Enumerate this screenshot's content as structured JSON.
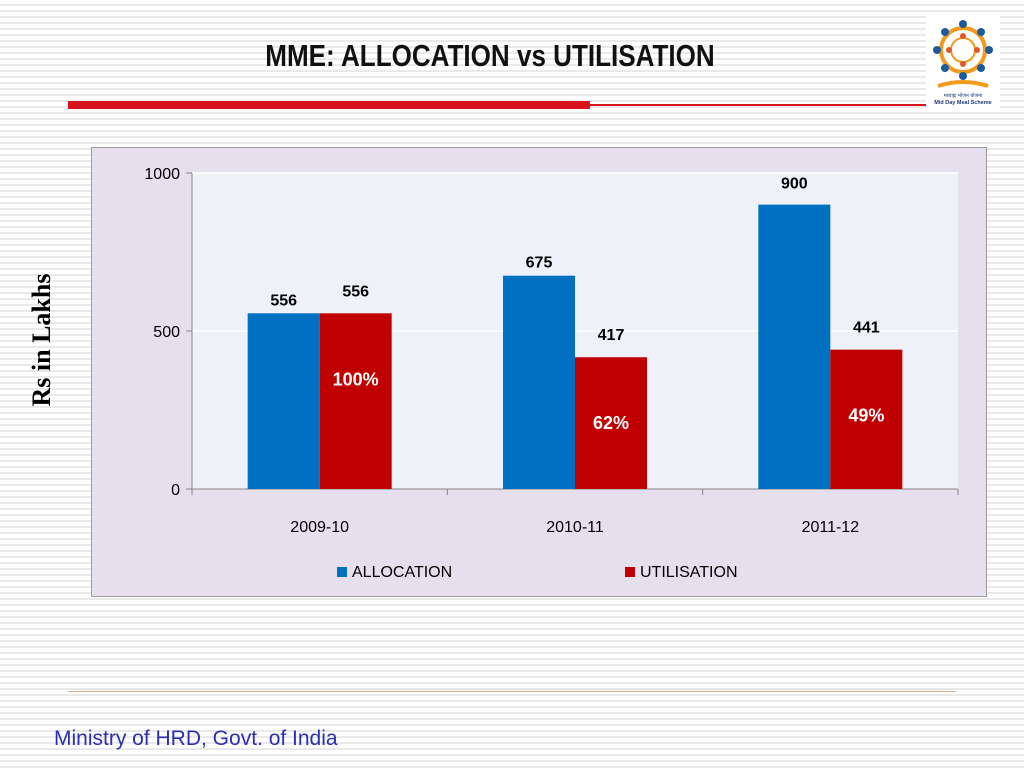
{
  "slide": {
    "title": "MME: ALLOCATION vs UTILISATION",
    "footer": "Ministry of HRD, Govt. of India",
    "logo_caption": "मध्याह्न भोजन योजना",
    "logo_name": "Mid Day Meal Scheme"
  },
  "colors": {
    "title_rule": "#d7131b",
    "chart_background": "#e6dfed",
    "plot_background": "#eef2f8",
    "allocation": "#0070c0",
    "utilisation": "#c00000",
    "footer_text": "#2c2fb1"
  },
  "chart_data": {
    "type": "bar",
    "title": "",
    "ylabel": "Rs in Lakhs",
    "xlabel": "",
    "ylim": [
      0,
      1000
    ],
    "yticks": [
      0,
      500,
      1000
    ],
    "grid": true,
    "legend_position": "bottom",
    "categories": [
      "2009-10",
      "2010-11",
      "2011-12"
    ],
    "series": [
      {
        "name": "ALLOCATION",
        "color": "#0070c0",
        "values": [
          556,
          675,
          900
        ],
        "labels": [
          "556",
          "675",
          "900"
        ]
      },
      {
        "name": "UTILISATION",
        "color": "#c00000",
        "values": [
          556,
          417,
          441
        ],
        "labels": [
          "556",
          "417",
          "441"
        ]
      }
    ],
    "annotations": [
      "100%",
      "62%",
      "49%"
    ]
  }
}
